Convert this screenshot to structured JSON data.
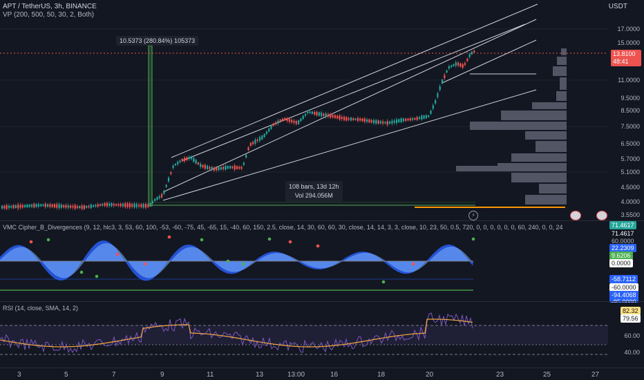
{
  "header": {
    "symbol": "APT / TetherUS, 3h, BINANCE",
    "vp": "VP (200, 500, 50, 30, 2, Both)",
    "currency": "USDT"
  },
  "price_axis": {
    "labels": [
      "17.0000",
      "15.0000",
      "11.0000",
      "9.5000",
      "8.5000",
      "7.5000",
      "6.5000",
      "5.7000",
      "5.1000",
      "4.5000",
      "4.0000",
      "3.5500"
    ],
    "current_price": "13.8100",
    "countdown": "48:41"
  },
  "measure_box": {
    "text": "10.5373 (280.84%) 105373"
  },
  "range_box": {
    "bars": "108 bars, 13d 12h",
    "vol": "Vol 294.056M"
  },
  "cipher": {
    "title": "VMC Cipher_B_Divergences (9, 12, hlc3, 3, 53, 60, 100, -53, -60, -75, 45, -65, 15, -40, 60, 150, 2.5, close, 14, 30, 60, 60, 30, close, 14, 14, 3, 3, close, 10, 23, 50, 0.5, 720, 0, 0, 0, 0, 0, 0, 60, 240, 0, 0, 240)",
    "labels": {
      "a": "71.4617",
      "b": "71.4617",
      "c": "60.0000",
      "d": "22.2309",
      "e": "9.6206",
      "f": "0.0000",
      "g": "-58.7112",
      "h": "-60.0000",
      "i": "-94.4068",
      "j": "-95.0000"
    }
  },
  "rsi": {
    "title": "RSI (14, close, SMA, 14, 2)",
    "value": "82.32",
    "sma": "79.56",
    "axis": [
      "60.00",
      "40.00"
    ]
  },
  "time_axis": [
    "3",
    "5",
    "7",
    "9",
    "11",
    "13",
    "13:00",
    "16",
    "18",
    "20",
    "23",
    "25",
    "27"
  ],
  "colors": {
    "bull": "#26a69a",
    "bear": "#ef5350",
    "accent": "#2962ff"
  }
}
